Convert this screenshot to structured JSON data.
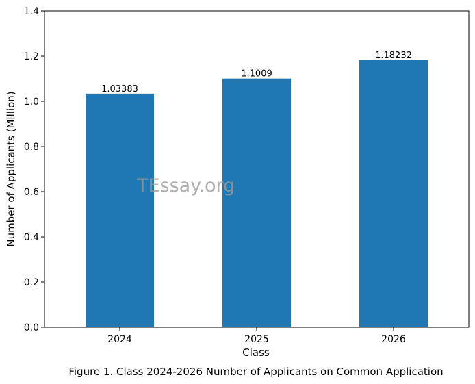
{
  "chart_data": {
    "type": "bar",
    "categories": [
      "2024",
      "2025",
      "2026"
    ],
    "values": [
      1.03383,
      1.1009,
      1.18232
    ],
    "data_labels": [
      "1.03383",
      "1.1009",
      "1.18232"
    ],
    "xlabel": "Class",
    "ylabel": "Number of Applicants (Million)",
    "ylim": [
      0,
      1.4
    ],
    "yticks": [
      "0.0",
      "0.2",
      "0.4",
      "0.6",
      "0.8",
      "1.0",
      "1.2",
      "1.4"
    ],
    "bar_color": "#1f77b4",
    "grid": false,
    "legend": "none"
  },
  "caption": "Figure 1. Class 2024-2026 Number of Applicants on Common Application",
  "watermark": "TEssay.org"
}
